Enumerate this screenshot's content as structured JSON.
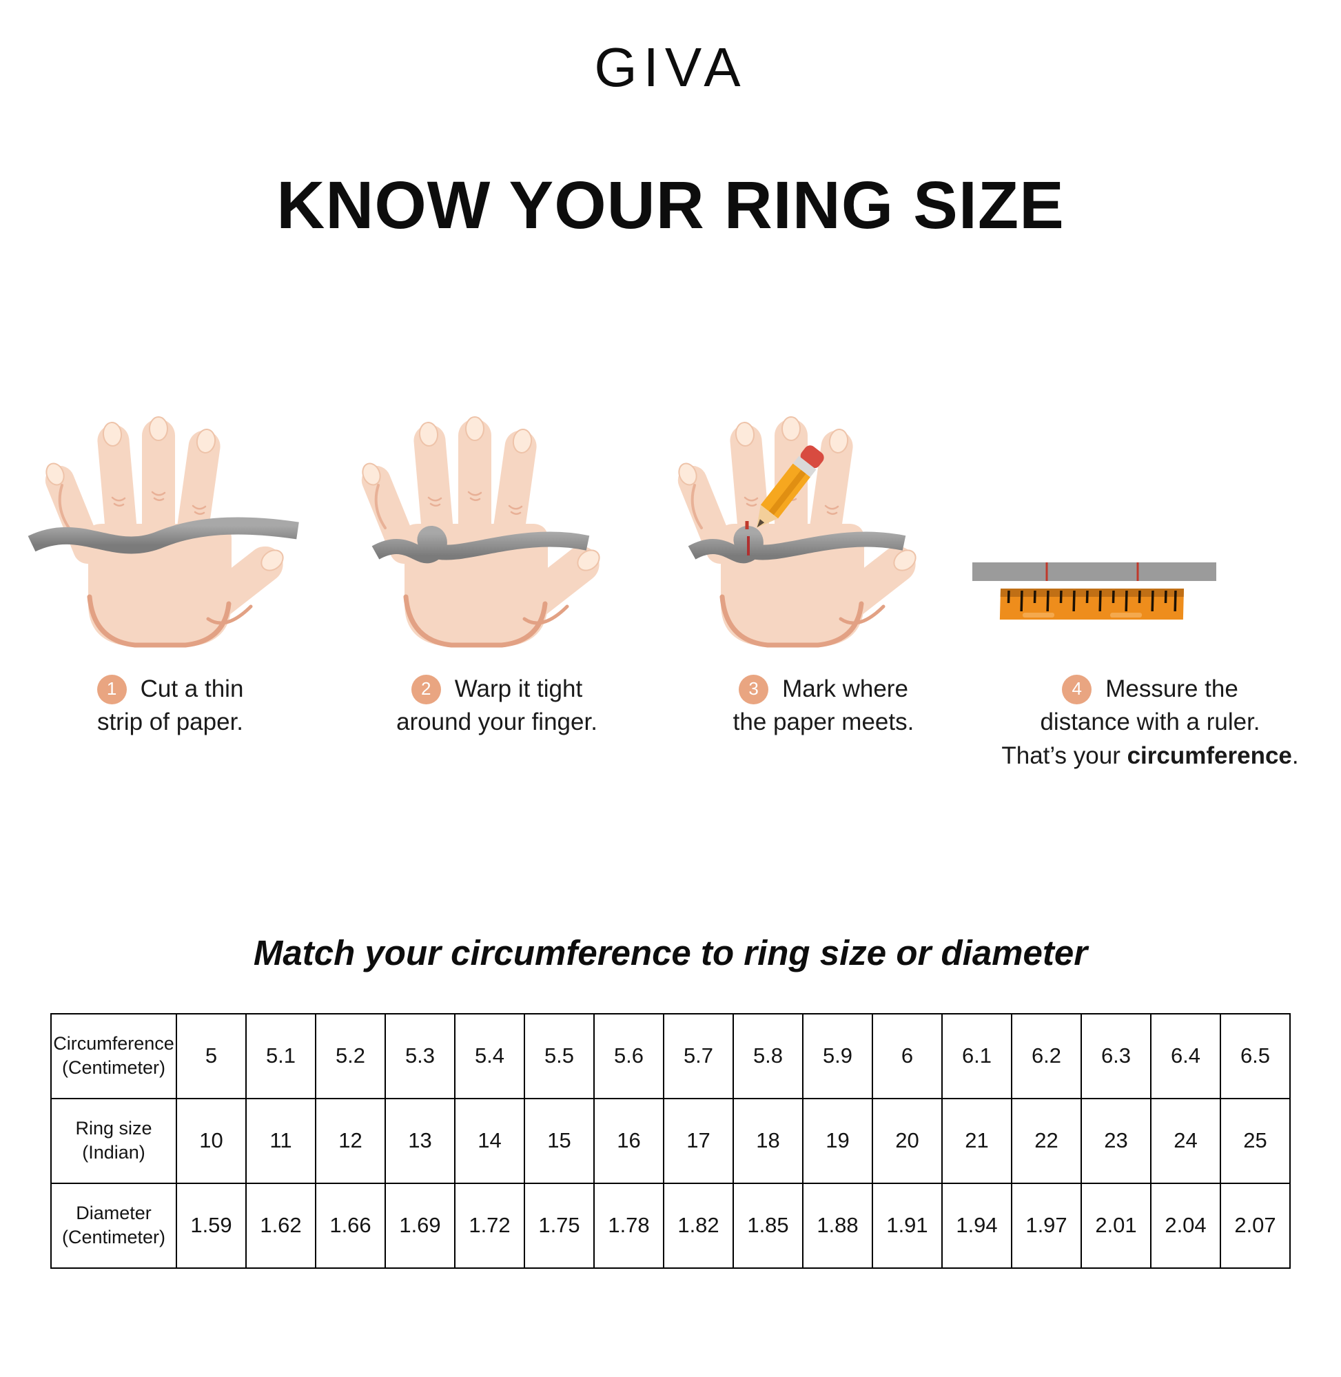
{
  "brand": "GIVA",
  "title": "KNOW YOUR RING SIZE",
  "steps": [
    {
      "number": "1",
      "line1": "Cut a thin",
      "line2": "strip of paper."
    },
    {
      "number": "2",
      "line1": "Warp it tight",
      "line2": "around your finger."
    },
    {
      "number": "3",
      "line1": "Mark where",
      "line2": "the paper meets."
    },
    {
      "number": "4",
      "line1": "Messure the",
      "line2": "distance with a ruler.",
      "line3_prefix": "That’s your ",
      "line3_bold": "circumference",
      "line3_suffix": "."
    }
  ],
  "table_title": "Match your circumference to ring size or diameter",
  "table": {
    "rows": [
      {
        "header": "Circumference\n(Centimeter)",
        "values": [
          "5",
          "5.1",
          "5.2",
          "5.3",
          "5.4",
          "5.5",
          "5.6",
          "5.7",
          "5.8",
          "5.9",
          "6",
          "6.1",
          "6.2",
          "6.3",
          "6.4",
          "6.5"
        ]
      },
      {
        "header": "Ring size\n(Indian)",
        "values": [
          "10",
          "11",
          "12",
          "13",
          "14",
          "15",
          "16",
          "17",
          "18",
          "19",
          "20",
          "21",
          "22",
          "23",
          "24",
          "25"
        ]
      },
      {
        "header": "Diameter\n(Centimeter)",
        "values": [
          "1.59",
          "1.62",
          "1.66",
          "1.69",
          "1.72",
          "1.75",
          "1.78",
          "1.82",
          "1.85",
          "1.88",
          "1.91",
          "1.94",
          "1.97",
          "2.01",
          "2.04",
          "2.07"
        ]
      }
    ]
  },
  "icons": {
    "hand": "hand-illustration",
    "paper_strip": "paper-strip-illustration",
    "pencil": "pencil-icon",
    "ruler": "ruler-icon",
    "step_badge": "step-number-badge"
  },
  "colors": {
    "badge": "#e9a581",
    "hand_fill": "#f6d6c2",
    "hand_outline": "#e2a184",
    "nail": "#fdeadb",
    "paper_gray": "#9b9b9b",
    "ruler_orange": "#ee8d1c",
    "ruler_dark": "#c06f15",
    "mark_red": "#c0392b",
    "pencil_yellow": "#f6a71f",
    "pencil_eraser": "#d84b40",
    "text": "#111111"
  }
}
